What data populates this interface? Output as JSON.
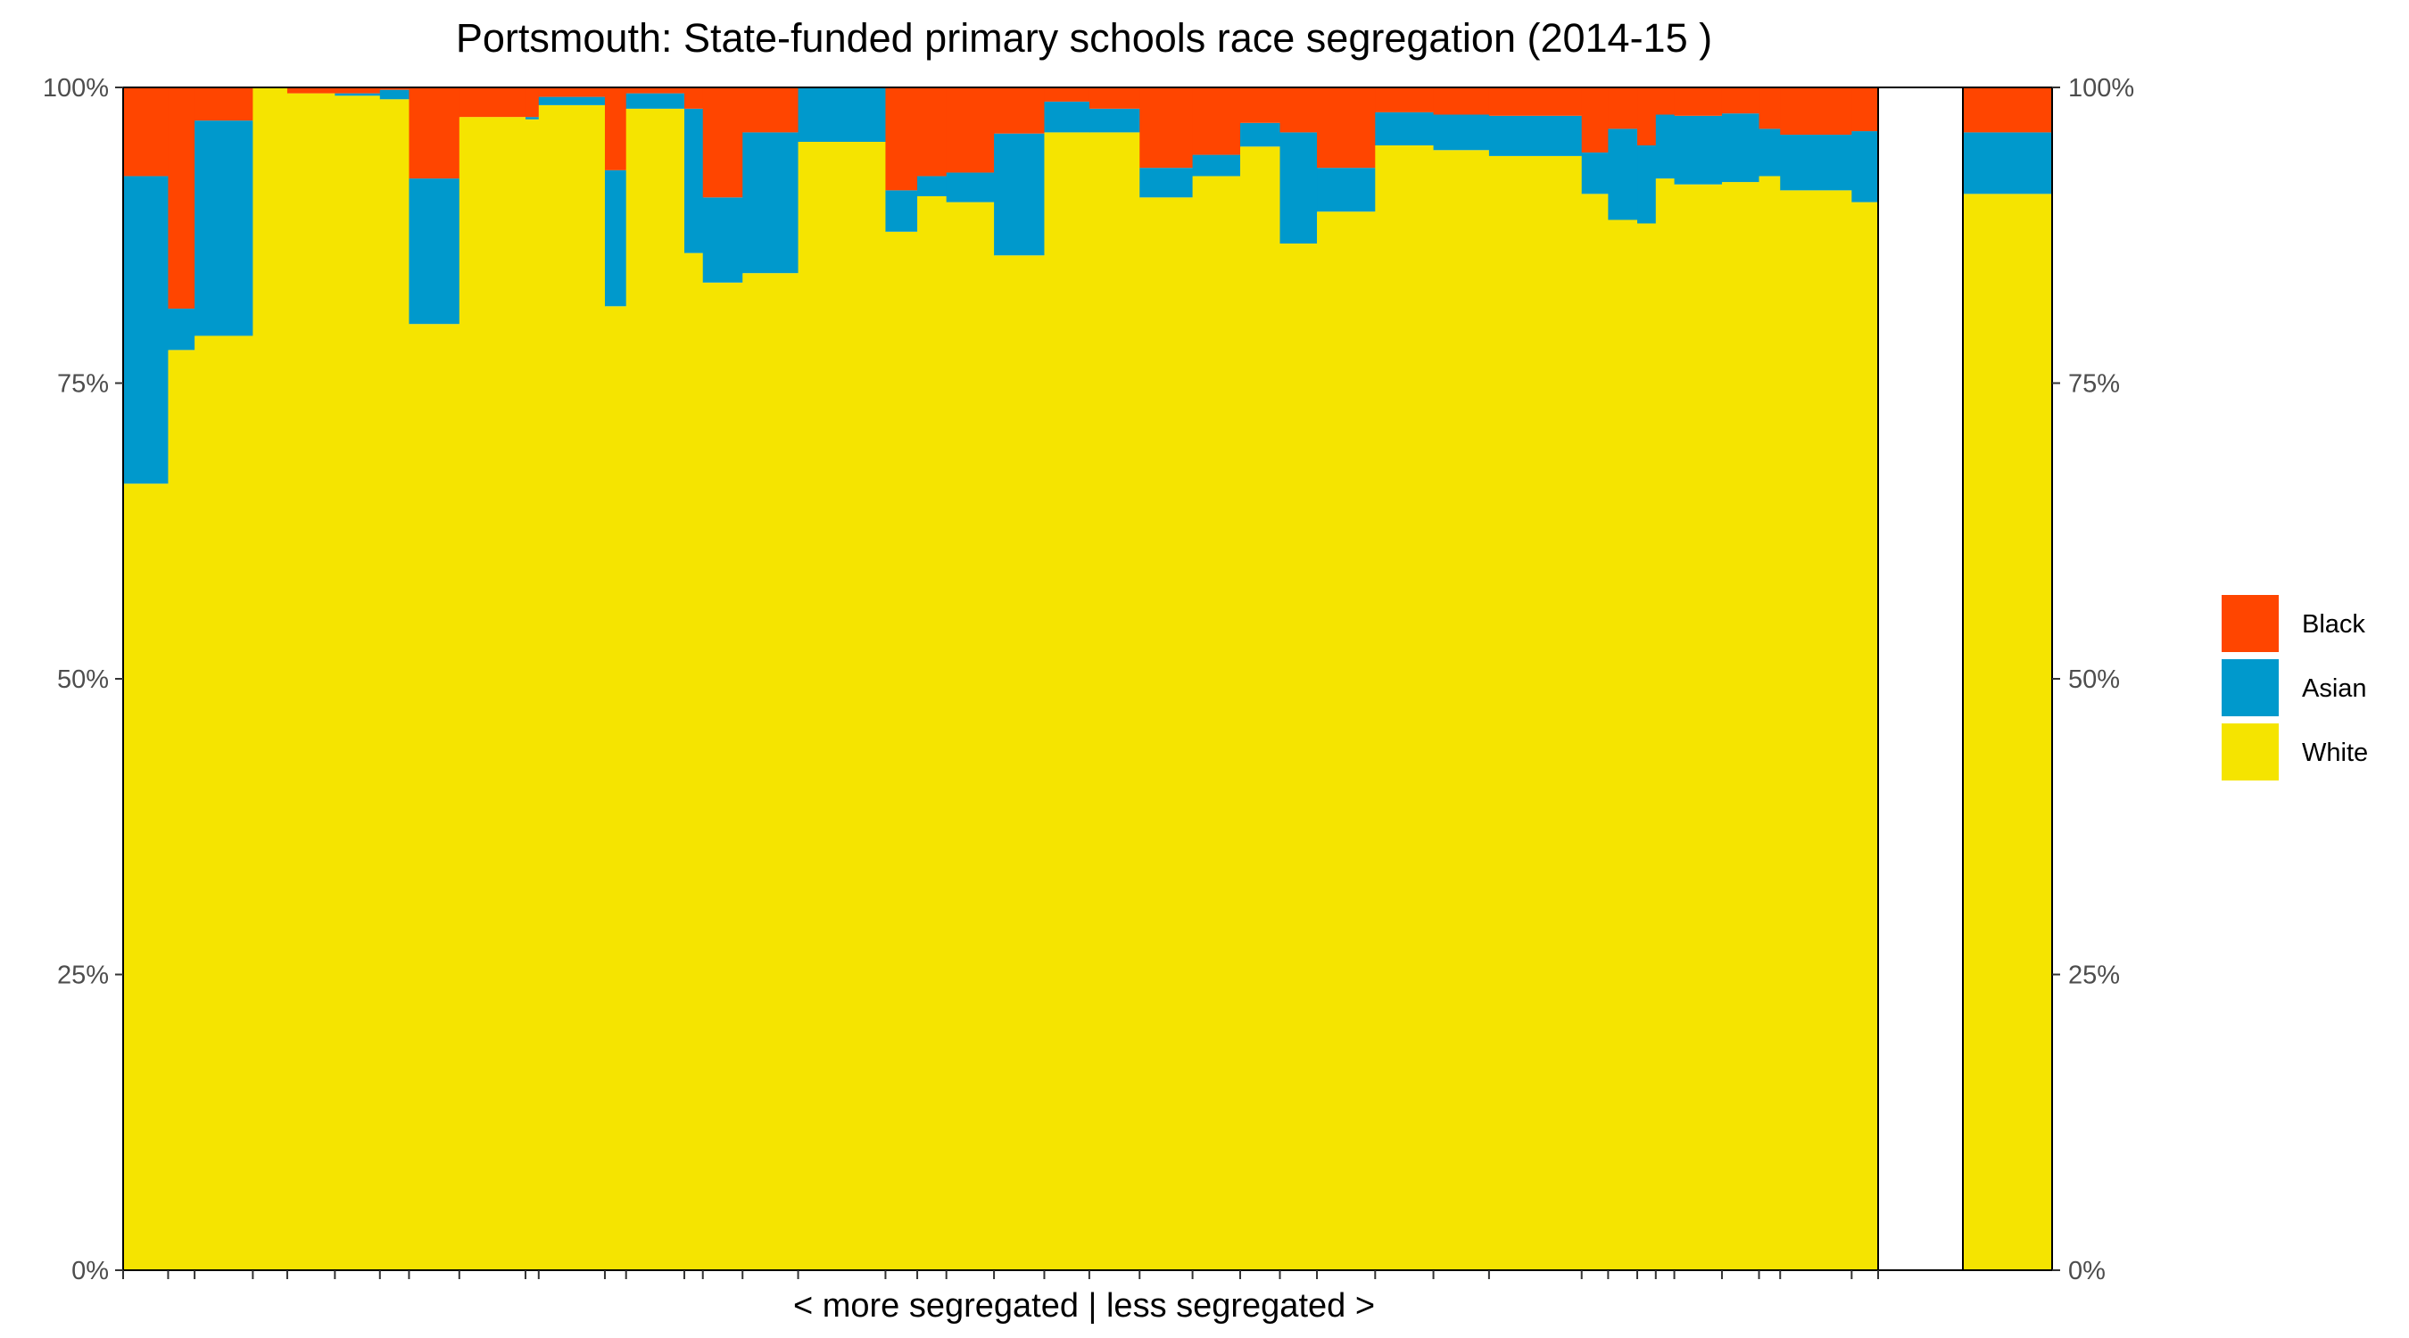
{
  "chart_data": {
    "type": "bar",
    "stacked": true,
    "variable_width": true,
    "title": "Portsmouth: State-funded primary schools race segregation (2014-15 )",
    "xlabel": "< more segregated | less segregated >",
    "ylabel": "",
    "ylim": [
      0,
      1
    ],
    "yticks": [
      "0%",
      "25%",
      "50%",
      "75%",
      "100%"
    ],
    "ytick_values": [
      0,
      0.25,
      0.5,
      0.75,
      1
    ],
    "grid": false,
    "legend_position": "right",
    "legend": [
      {
        "name": "Black",
        "color": "#FF4500"
      },
      {
        "name": "Asian",
        "color": "#0099CC"
      },
      {
        "name": "White",
        "color": "#F5E400"
      }
    ],
    "schools": {
      "bar_widths": [
        1.7,
        1.0,
        2.2,
        1.3,
        1.8,
        1.7,
        1.1,
        1.9,
        2.5,
        0.5,
        2.5,
        0.8,
        2.2,
        0.7,
        1.5,
        2.1,
        3.3,
        1.2,
        1.1,
        1.8,
        1.9,
        1.7,
        1.9,
        2.0,
        1.8,
        1.5,
        1.4,
        2.2,
        2.2,
        2.1,
        3.5,
        1.0,
        1.1,
        0.7,
        0.7,
        1.8,
        1.4,
        0.8,
        2.7,
        1.0
      ],
      "white": [
        0.665,
        0.778,
        0.79,
        1.0,
        0.995,
        0.993,
        0.99,
        0.8,
        0.975,
        0.973,
        0.985,
        0.815,
        0.982,
        0.86,
        0.835,
        0.843,
        0.954,
        0.878,
        0.908,
        0.903,
        0.858,
        0.962,
        0.962,
        0.907,
        0.925,
        0.95,
        0.868,
        0.895,
        0.951,
        0.947,
        0.942,
        0.91,
        0.888,
        0.885,
        0.923,
        0.918,
        0.92,
        0.925,
        0.913,
        0.903
      ],
      "asian": [
        0.26,
        0.035,
        0.182,
        0.0,
        0.0,
        0.002,
        0.008,
        0.123,
        0.0,
        0.002,
        0.007,
        0.115,
        0.013,
        0.122,
        0.072,
        0.119,
        0.046,
        0.035,
        0.017,
        0.025,
        0.103,
        0.026,
        0.02,
        0.025,
        0.018,
        0.02,
        0.094,
        0.037,
        0.028,
        0.03,
        0.034,
        0.035,
        0.077,
        0.066,
        0.054,
        0.058,
        0.058,
        0.04,
        0.047,
        0.06
      ],
      "black": [
        0.075,
        0.187,
        0.028,
        0.0,
        0.005,
        0.005,
        0.002,
        0.077,
        0.025,
        0.025,
        0.008,
        0.07,
        0.005,
        0.018,
        0.093,
        0.038,
        0.0,
        0.087,
        0.075,
        0.072,
        0.039,
        0.012,
        0.018,
        0.068,
        0.057,
        0.03,
        0.038,
        0.068,
        0.021,
        0.023,
        0.024,
        0.055,
        0.035,
        0.049,
        0.023,
        0.024,
        0.022,
        0.035,
        0.04,
        0.037
      ]
    },
    "overall": {
      "white": 0.91,
      "asian": 0.052,
      "black": 0.038
    }
  }
}
